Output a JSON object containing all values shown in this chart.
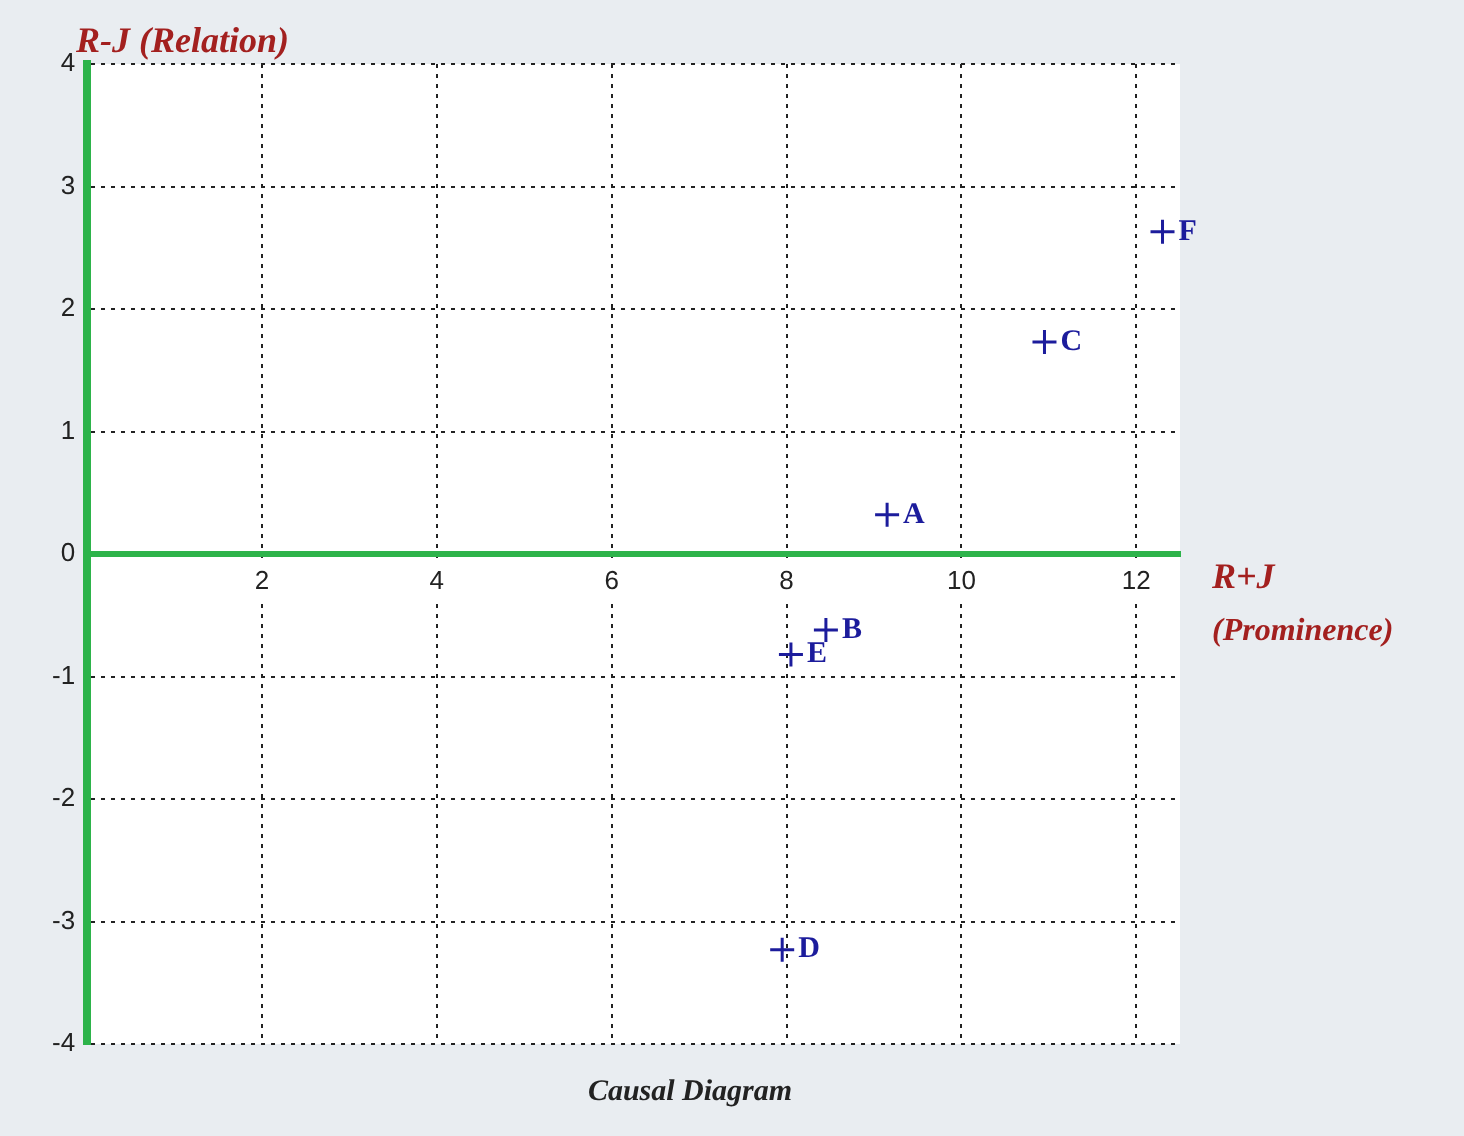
{
  "chart_data": {
    "type": "scatter",
    "title": "Causal Diagram",
    "xlabel": "R+J (Prominence)",
    "ylabel": "R-J (Relation)",
    "x": [
      9.15,
      8.45,
      10.95,
      7.95,
      8.05,
      12.3
    ],
    "series": [
      {
        "color": "#1c1c9c",
        "values": [
          0.32,
          -0.62,
          1.73,
          -3.23,
          -0.82,
          2.63
        ]
      }
    ],
    "xlim": [
      0,
      12.5
    ],
    "ylim": [
      -4,
      4
    ],
    "xticks": [
      2,
      4,
      6,
      8,
      10,
      12
    ],
    "yticks": [
      -4,
      -3,
      -2,
      -1,
      0,
      1,
      2,
      3,
      4
    ],
    "grid": true,
    "legend": false,
    "marker": "cross",
    "annotations": [
      {
        "text": "A",
        "x": 9.15,
        "y": 0.32
      },
      {
        "text": "B",
        "x": 8.45,
        "y": -0.62
      },
      {
        "text": "C",
        "x": 10.95,
        "y": 1.73
      },
      {
        "text": "D",
        "x": 7.95,
        "y": -3.23
      },
      {
        "text": "E",
        "x": 8.05,
        "y": -0.82
      },
      {
        "text": "F",
        "x": 12.3,
        "y": 2.63
      }
    ]
  }
}
